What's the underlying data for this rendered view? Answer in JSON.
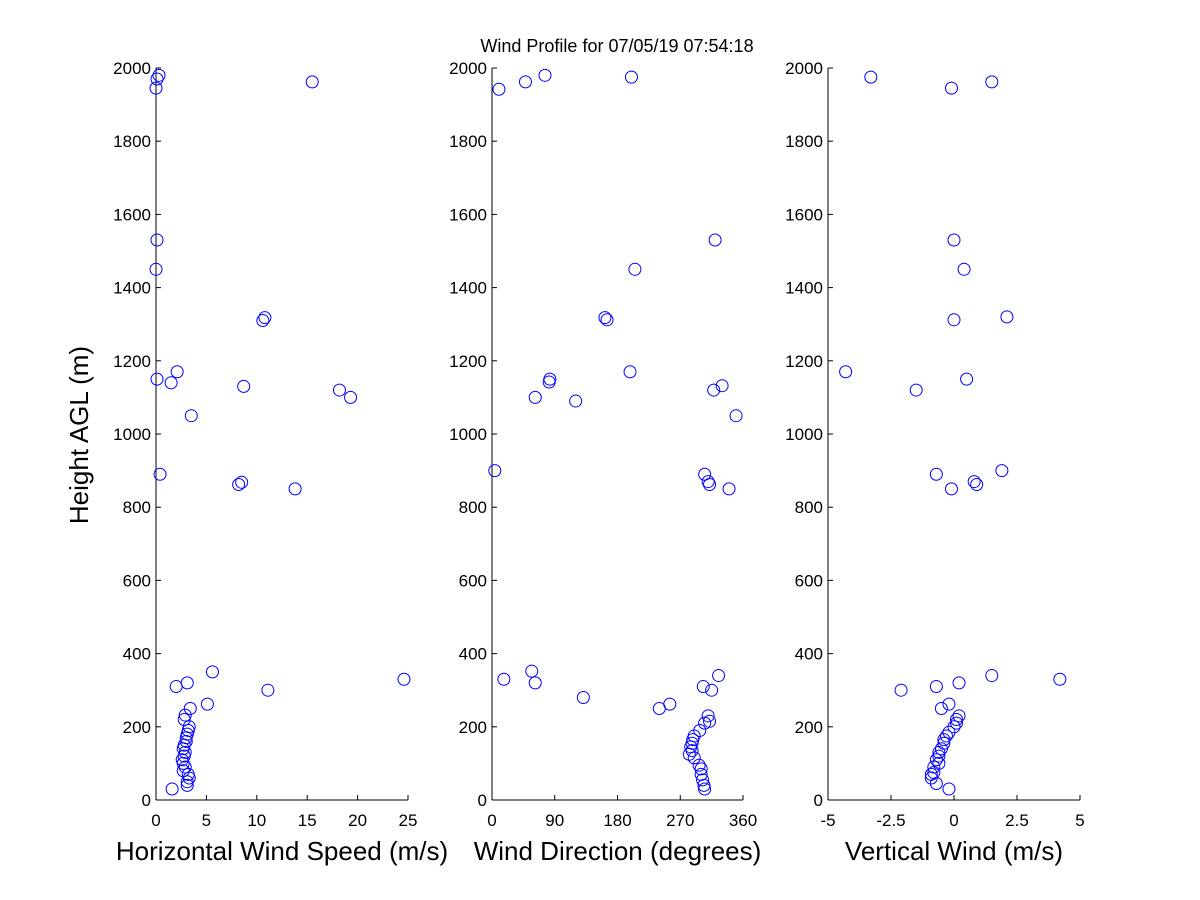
{
  "chart_data": {
    "type": "scatter",
    "title": "Wind Profile for  07/05/19 07:54:18",
    "ylabel": "Height AGL (m)",
    "ylim": [
      0,
      2000
    ],
    "yticks": [
      0,
      200,
      400,
      600,
      800,
      1000,
      1200,
      1400,
      1600,
      1800,
      2000
    ],
    "marker_color": "#0000ff",
    "panels": [
      {
        "name": "speed",
        "xlabel": "Horizontal Wind Speed (m/s)",
        "xlim": [
          0,
          25
        ],
        "xticks": [
          0,
          5,
          10,
          15,
          20,
          25
        ],
        "xticklabels": [
          "0",
          "5",
          "10",
          "15",
          "20",
          "25"
        ],
        "points": [
          [
            0.3,
            1980
          ],
          [
            0.1,
            1970
          ],
          [
            0.0,
            1945
          ],
          [
            15.5,
            1962
          ],
          [
            0.1,
            1530
          ],
          [
            0.0,
            1450
          ],
          [
            10.8,
            1318
          ],
          [
            10.6,
            1310
          ],
          [
            2.1,
            1170
          ],
          [
            0.1,
            1150
          ],
          [
            1.5,
            1140
          ],
          [
            8.7,
            1130
          ],
          [
            18.2,
            1120
          ],
          [
            19.3,
            1100
          ],
          [
            3.5,
            1050
          ],
          [
            0.4,
            890
          ],
          [
            8.5,
            868
          ],
          [
            8.2,
            862
          ],
          [
            13.8,
            850
          ],
          [
            5.6,
            350
          ],
          [
            24.6,
            330
          ],
          [
            3.1,
            320
          ],
          [
            2.0,
            310
          ],
          [
            11.1,
            300
          ],
          [
            5.1,
            262
          ],
          [
            3.4,
            250
          ],
          [
            2.9,
            232
          ],
          [
            2.8,
            220
          ],
          [
            3.3,
            200
          ],
          [
            3.2,
            190
          ],
          [
            3.1,
            180
          ],
          [
            3.0,
            170
          ],
          [
            3.0,
            160
          ],
          [
            2.8,
            150
          ],
          [
            2.7,
            140
          ],
          [
            2.9,
            130
          ],
          [
            2.8,
            120
          ],
          [
            2.6,
            110
          ],
          [
            2.7,
            100
          ],
          [
            2.9,
            90
          ],
          [
            2.7,
            80
          ],
          [
            3.2,
            70
          ],
          [
            3.3,
            60
          ],
          [
            3.1,
            50
          ],
          [
            3.1,
            40
          ],
          [
            1.6,
            30
          ]
        ]
      },
      {
        "name": "direction",
        "xlabel": "Wind Direction (degrees)",
        "xlim": [
          0,
          360
        ],
        "xticks": [
          0,
          90,
          180,
          270,
          360
        ],
        "xticklabels": [
          "0",
          "90",
          "180",
          "270",
          "360"
        ],
        "points": [
          [
            76,
            1980
          ],
          [
            200,
            1975
          ],
          [
            48,
            1962
          ],
          [
            10,
            1942
          ],
          [
            320,
            1530
          ],
          [
            205,
            1450
          ],
          [
            162,
            1318
          ],
          [
            165,
            1312
          ],
          [
            198,
            1170
          ],
          [
            83,
            1150
          ],
          [
            82,
            1142
          ],
          [
            330,
            1132
          ],
          [
            318,
            1120
          ],
          [
            62,
            1100
          ],
          [
            120,
            1090
          ],
          [
            350,
            1050
          ],
          [
            4,
            900
          ],
          [
            305,
            890
          ],
          [
            310,
            870
          ],
          [
            312,
            862
          ],
          [
            340,
            850
          ],
          [
            57,
            352
          ],
          [
            325,
            340
          ],
          [
            17,
            330
          ],
          [
            62,
            320
          ],
          [
            303,
            310
          ],
          [
            315,
            300
          ],
          [
            131,
            280
          ],
          [
            255,
            262
          ],
          [
            240,
            250
          ],
          [
            310,
            230
          ],
          [
            312,
            215
          ],
          [
            305,
            210
          ],
          [
            298,
            190
          ],
          [
            290,
            175
          ],
          [
            288,
            165
          ],
          [
            287,
            155
          ],
          [
            285,
            145
          ],
          [
            287,
            135
          ],
          [
            283,
            125
          ],
          [
            290,
            115
          ],
          [
            297,
            95
          ],
          [
            300,
            85
          ],
          [
            300,
            70
          ],
          [
            302,
            55
          ],
          [
            304,
            40
          ],
          [
            305,
            30
          ]
        ]
      },
      {
        "name": "vertical",
        "xlabel": "Vertical Wind (m/s)",
        "xlim": [
          -5,
          5
        ],
        "xticks": [
          -5,
          -2.5,
          0,
          2.5,
          5
        ],
        "xticklabels": [
          "-5",
          "-2.5",
          "0",
          "2.5",
          "5"
        ],
        "points": [
          [
            -3.3,
            1975
          ],
          [
            1.5,
            1962
          ],
          [
            -0.1,
            1945
          ],
          [
            0.0,
            1530
          ],
          [
            0.4,
            1450
          ],
          [
            2.1,
            1320
          ],
          [
            0.0,
            1312
          ],
          [
            -4.3,
            1170
          ],
          [
            0.5,
            1150
          ],
          [
            -1.5,
            1120
          ],
          [
            1.9,
            900
          ],
          [
            -0.7,
            890
          ],
          [
            0.8,
            870
          ],
          [
            0.9,
            862
          ],
          [
            -0.1,
            850
          ],
          [
            4.2,
            330
          ],
          [
            1.5,
            340
          ],
          [
            0.2,
            320
          ],
          [
            -0.7,
            310
          ],
          [
            -2.1,
            300
          ],
          [
            -0.2,
            262
          ],
          [
            -0.5,
            250
          ],
          [
            0.2,
            230
          ],
          [
            0.1,
            220
          ],
          [
            0.1,
            210
          ],
          [
            0.0,
            200
          ],
          [
            -0.2,
            185
          ],
          [
            -0.3,
            175
          ],
          [
            -0.4,
            165
          ],
          [
            -0.4,
            155
          ],
          [
            -0.5,
            140
          ],
          [
            -0.6,
            130
          ],
          [
            -0.6,
            120
          ],
          [
            -0.7,
            110
          ],
          [
            -0.6,
            100
          ],
          [
            -0.8,
            90
          ],
          [
            -0.8,
            75
          ],
          [
            -0.9,
            70
          ],
          [
            -0.9,
            60
          ],
          [
            -0.7,
            45
          ],
          [
            -0.2,
            30
          ]
        ]
      }
    ]
  }
}
